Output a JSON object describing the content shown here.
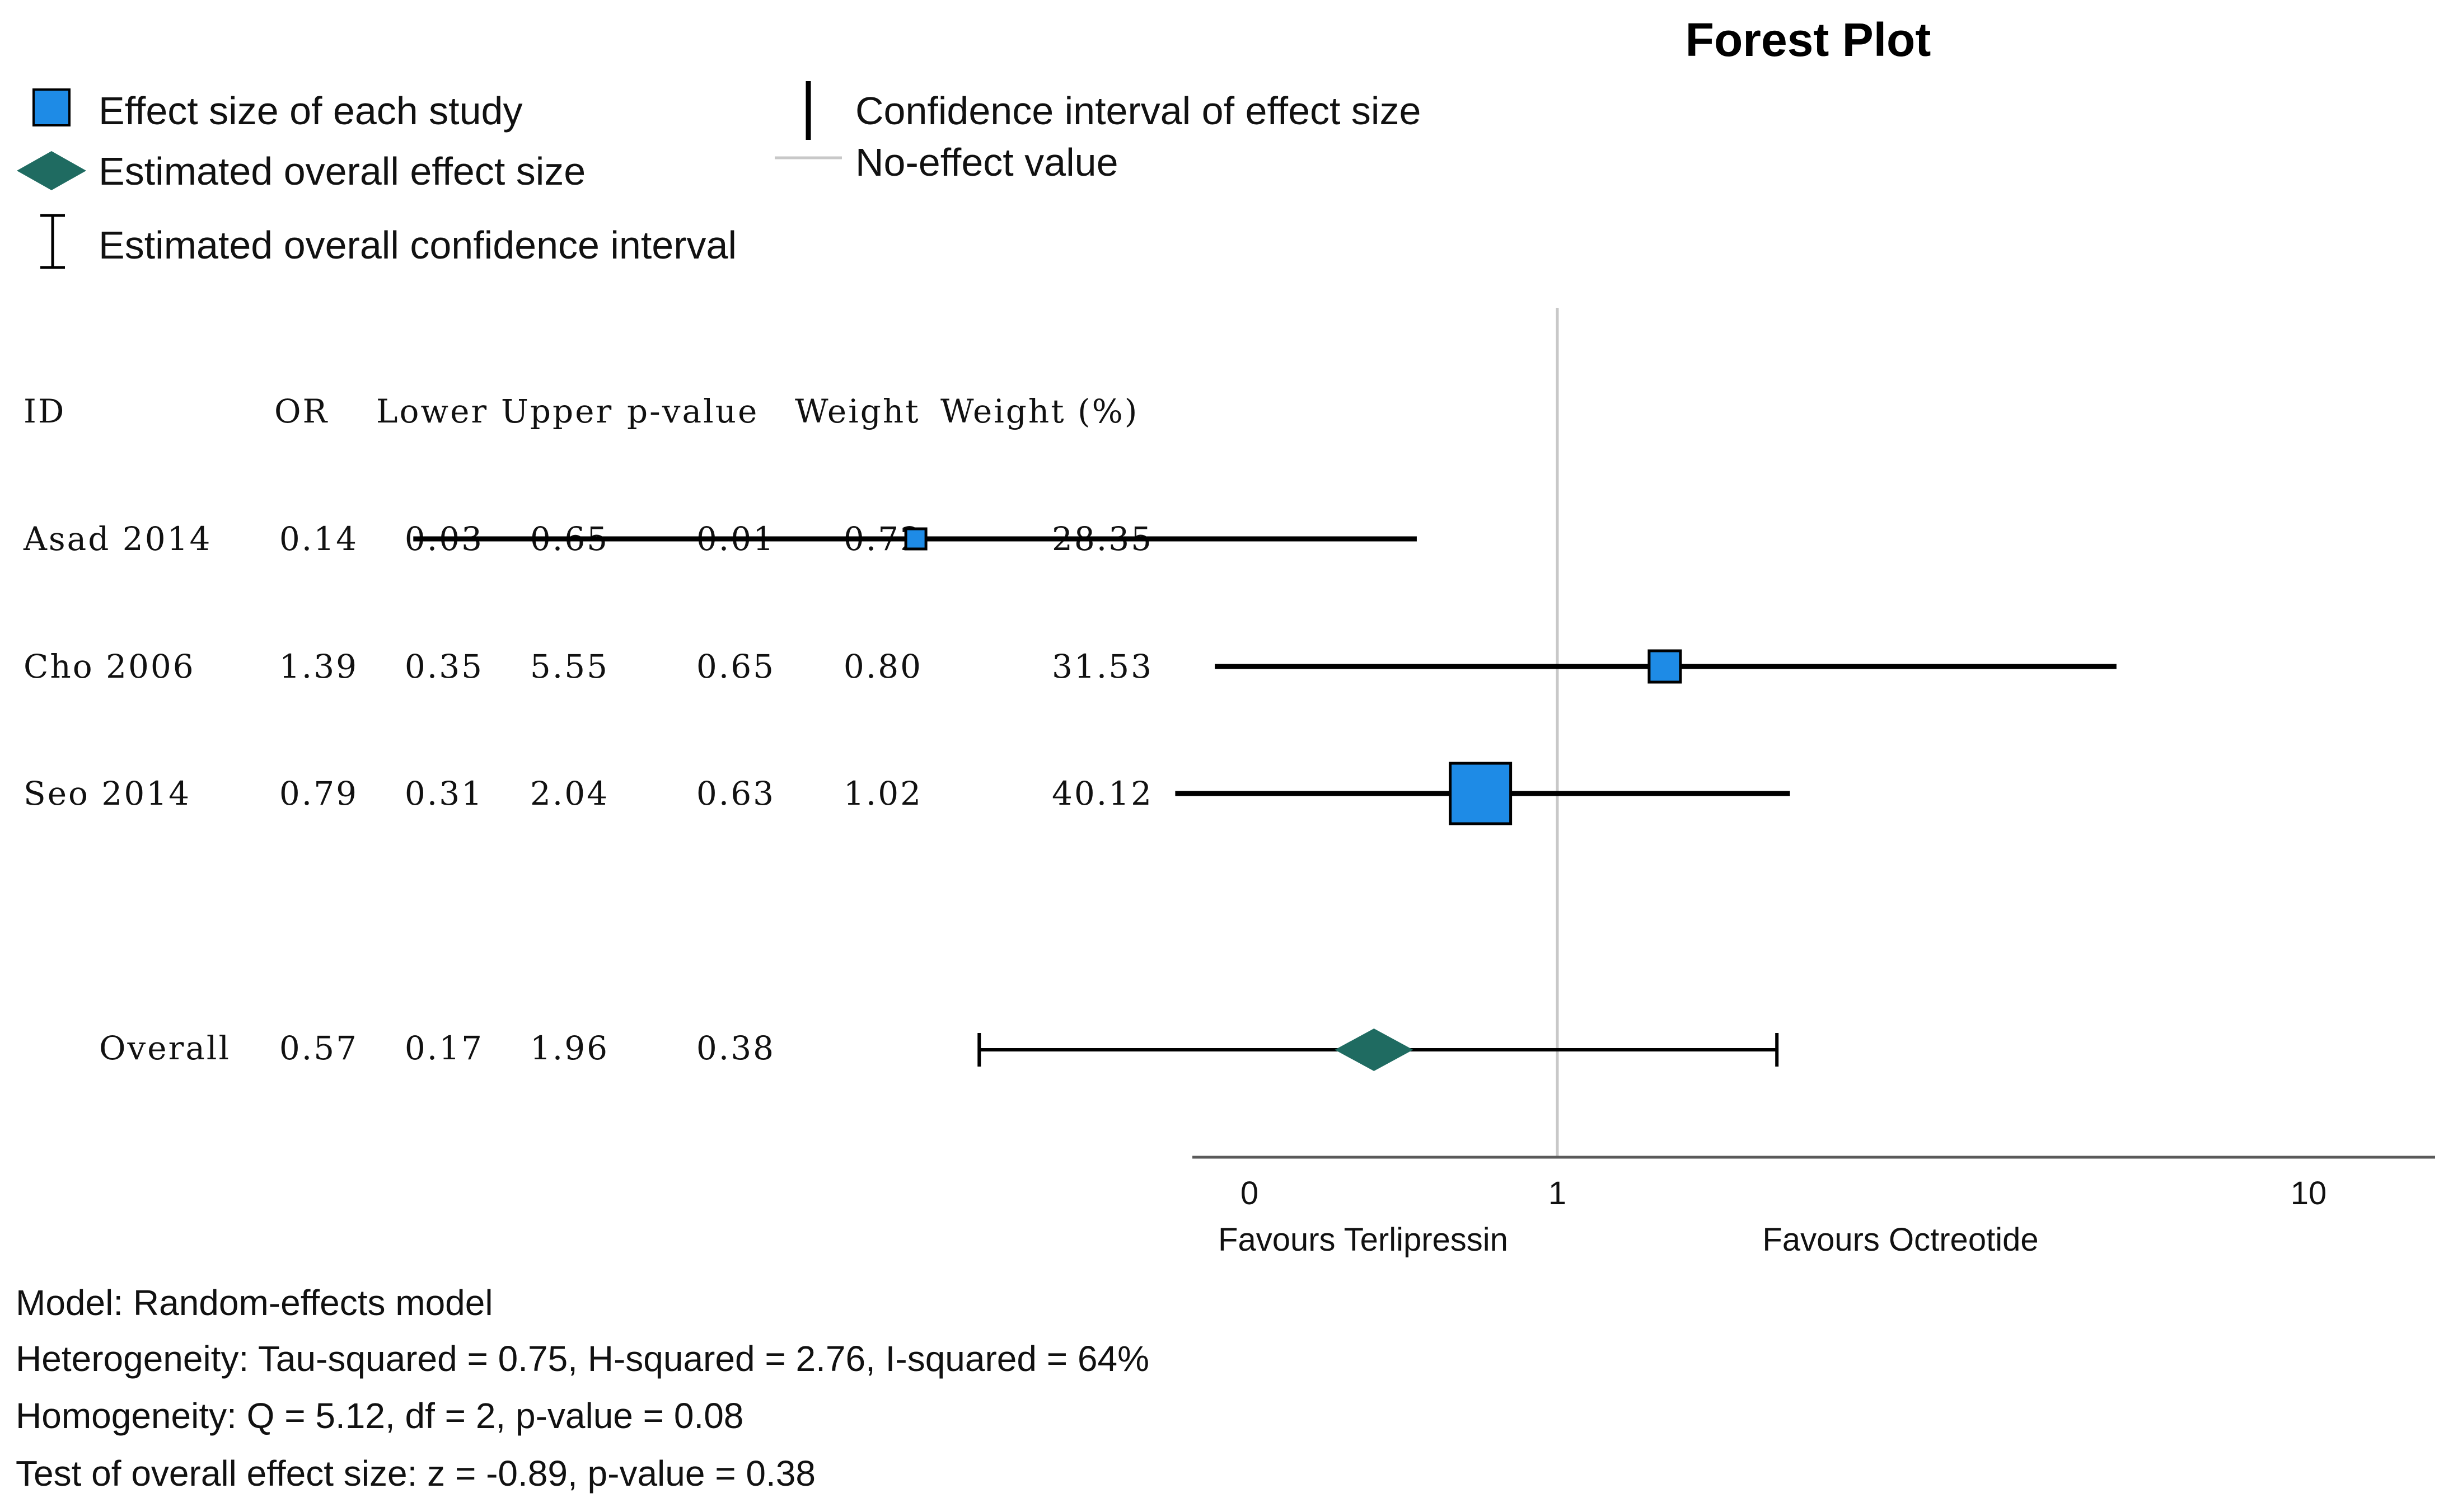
{
  "colors": {
    "study_fill": "#1E8BE6",
    "study_stroke": "#000000",
    "overall_fill": "#1F6B61",
    "line": "#000000",
    "no_effect_line": "#C8C8C8",
    "axis": "#5A5A5A"
  },
  "chart_data": {
    "type": "forest",
    "title": "Forest Plot",
    "legend": {
      "study_marker": "Effect size of each study",
      "overall_marker": "Estimated overall effect size",
      "overall_ci": "Estimated overall confidence interval",
      "ci": "Confidence interval of effect size",
      "no_effect": "No-effect value"
    },
    "columns": [
      "ID",
      "OR",
      "Lower",
      "Upper",
      "p-value",
      "Weight",
      "Weight (%)"
    ],
    "studies": [
      {
        "id": "Asad 2014",
        "or": 0.14,
        "lower": 0.03,
        "upper": 0.65,
        "p": "0.01",
        "weight": "0.72",
        "weight_pct": 28.35,
        "cells": [
          "Asad 2014",
          "0.14",
          "0.03",
          "0.65",
          "0.01",
          "0.72",
          "28.35"
        ]
      },
      {
        "id": "Cho 2006",
        "or": 1.39,
        "lower": 0.35,
        "upper": 5.55,
        "p": "0.65",
        "weight": "0.80",
        "weight_pct": 31.53,
        "cells": [
          "Cho 2006",
          "1.39",
          "0.35",
          "5.55",
          "0.65",
          "0.80",
          "31.53"
        ]
      },
      {
        "id": "Seo 2014",
        "or": 0.79,
        "lower": 0.31,
        "upper": 2.04,
        "p": "0.63",
        "weight": "1.02",
        "weight_pct": 40.12,
        "cells": [
          "Seo 2014",
          "0.79",
          "0.31",
          "2.04",
          "0.63",
          "1.02",
          "40.12"
        ]
      }
    ],
    "overall": {
      "id": "Overall",
      "or": 0.57,
      "lower": 0.17,
      "upper": 1.96,
      "p": "0.38",
      "cells": [
        "Overall",
        "0.57",
        "0.17",
        "1.96",
        "0.38"
      ]
    },
    "x_axis": {
      "scale": "log",
      "ticks": [
        {
          "value": 0.01,
          "label": "0"
        },
        {
          "value": 1,
          "label": "1"
        },
        {
          "value": 10,
          "label": "10"
        }
      ],
      "no_effect_value": 1,
      "favours_left": "Favours Terlipressin",
      "favours_right": "Favours Octreotide"
    },
    "notes": [
      "Model: Random-effects model",
      "Heterogeneity: Tau-squared = 0.75, H-squared = 2.76, I-squared = 64%",
      "Homogeneity: Q = 5.12, df = 2, p-value = 0.08",
      "Test of overall effect size: z = -0.89, p-value = 0.38"
    ]
  }
}
